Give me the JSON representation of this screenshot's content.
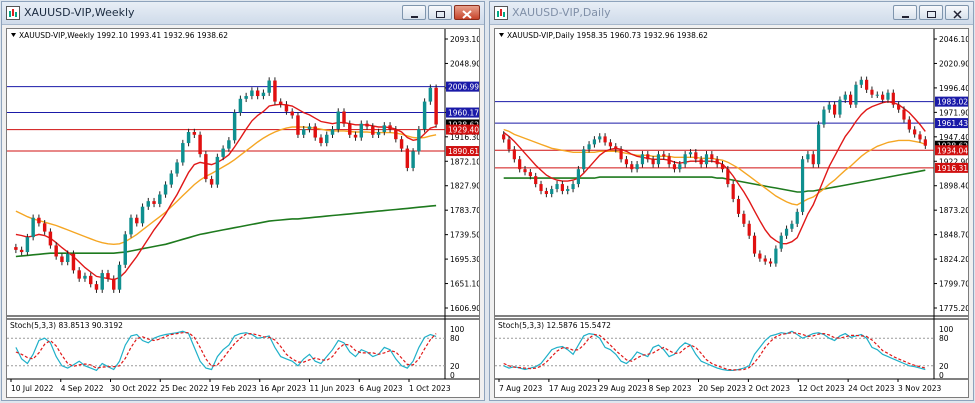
{
  "windows": [
    {
      "id": "weekly",
      "title": "XAUUSD-VIP,Weekly",
      "header": "XAUUSD-VIP,Weekly  1992.10 1993.41 1932.96 1938.62",
      "price_labels": [
        "2093.10",
        "2048.90",
        "2004.70",
        "1960.50",
        "1916.30",
        "1872.10",
        "1827.90",
        "1783.70",
        "1739.50",
        "1695.30",
        "1651.10",
        "1606.90"
      ],
      "price_range": [
        1606.9,
        2093.1
      ],
      "badges": [
        {
          "text": "2006.99",
          "value": 2006.99,
          "color": "#1a1aa8"
        },
        {
          "text": "1960.17",
          "value": 1960.17,
          "color": "#1a1aa8"
        },
        {
          "text": "1938.62",
          "value": 1938.62,
          "color": "#000000"
        },
        {
          "text": "1929.40",
          "value": 1929.4,
          "color": "#d01010"
        },
        {
          "text": "1890.61",
          "value": 1890.61,
          "color": "#d01010"
        }
      ],
      "hlines": [
        {
          "value": 2006.99,
          "color": "#1a1aa8"
        },
        {
          "value": 1960.17,
          "color": "#1a1aa8"
        },
        {
          "value": 1929.4,
          "color": "#d01010"
        },
        {
          "value": 1890.61,
          "color": "#d01010"
        }
      ],
      "date_labels": [
        "10 Jul 2022",
        "4 Sep 2022",
        "30 Oct 2022",
        "25 Dec 2022",
        "19 Feb 2023",
        "16 Apr 2023",
        "11 Jun 2023",
        "6 Aug 2023",
        "1 Oct 2023"
      ],
      "stoch_label": "Stoch(5,3,3) 83.8513 90.3192",
      "stoch_levels": [
        "100",
        "80",
        "20",
        "0"
      ],
      "close": [
        1712,
        1708,
        1735,
        1770,
        1760,
        1745,
        1720,
        1700,
        1690,
        1705,
        1675,
        1660,
        1665,
        1650,
        1640,
        1670,
        1660,
        1640,
        1685,
        1740,
        1770,
        1760,
        1790,
        1800,
        1795,
        1812,
        1830,
        1850,
        1870,
        1905,
        1925,
        1920,
        1885,
        1840,
        1830,
        1880,
        1895,
        1910,
        1960,
        1985,
        1990,
        2000,
        1990,
        1996,
        2018,
        1980,
        1975,
        1962,
        1955,
        1920,
        1930,
        1935,
        1915,
        1905,
        1920,
        1930,
        1962,
        1940,
        1920,
        1915,
        1940,
        1935,
        1920,
        1925,
        1937,
        1930,
        1912,
        1895,
        1860,
        1890,
        1930,
        1980,
        2005,
        1938.62
      ],
      "ma_fast": [
        1740,
        1738,
        1735,
        1737,
        1740,
        1738,
        1733,
        1725,
        1716,
        1708,
        1700,
        1690,
        1680,
        1672,
        1664,
        1662,
        1660,
        1658,
        1662,
        1672,
        1686,
        1700,
        1716,
        1732,
        1748,
        1762,
        1777,
        1795,
        1812,
        1832,
        1852,
        1866,
        1870,
        1868,
        1866,
        1870,
        1876,
        1884,
        1898,
        1914,
        1930,
        1945,
        1955,
        1962,
        1972,
        1974,
        1975,
        1974,
        1972,
        1966,
        1960,
        1956,
        1950,
        1944,
        1942,
        1940,
        1942,
        1942,
        1940,
        1938,
        1938,
        1938,
        1936,
        1934,
        1934,
        1933,
        1930,
        1925,
        1915,
        1910,
        1912,
        1922,
        1932,
        1935
      ],
      "ma_med": [
        1782,
        1777,
        1772,
        1768,
        1765,
        1762,
        1759,
        1756,
        1752,
        1748,
        1744,
        1740,
        1736,
        1732,
        1728,
        1725,
        1723,
        1722,
        1723,
        1727,
        1733,
        1740,
        1748,
        1756,
        1764,
        1772,
        1780,
        1790,
        1800,
        1810,
        1820,
        1830,
        1838,
        1845,
        1850,
        1856,
        1862,
        1868,
        1875,
        1883,
        1891,
        1899,
        1907,
        1914,
        1920,
        1925,
        1929,
        1932,
        1934,
        1934,
        1934,
        1933,
        1932,
        1930,
        1928,
        1927,
        1927,
        1927,
        1926,
        1925,
        1925,
        1925,
        1924,
        1924,
        1924,
        1924,
        1923,
        1921,
        1918,
        1915,
        1914,
        1915,
        1918,
        1920
      ],
      "ma_slow": [
        1700,
        1701,
        1702,
        1703,
        1704,
        1705,
        1706,
        1706,
        1706,
        1706,
        1706,
        1706,
        1706,
        1706,
        1706,
        1706,
        1706,
        1706,
        1707,
        1708,
        1710,
        1712,
        1714,
        1716,
        1718,
        1720,
        1722,
        1725,
        1728,
        1731,
        1734,
        1737,
        1740,
        1742,
        1744,
        1746,
        1748,
        1750,
        1752,
        1754,
        1756,
        1758,
        1760,
        1762,
        1764,
        1765,
        1766,
        1767,
        1768,
        1768,
        1769,
        1770,
        1771,
        1772,
        1773,
        1774,
        1775,
        1776,
        1777,
        1778,
        1779,
        1780,
        1781,
        1782,
        1783,
        1784,
        1785,
        1786,
        1787,
        1788,
        1789,
        1790,
        1791,
        1792
      ],
      "stoch_k": [
        60,
        35,
        25,
        45,
        75,
        80,
        70,
        40,
        20,
        15,
        22,
        30,
        20,
        15,
        10,
        25,
        18,
        12,
        30,
        65,
        85,
        88,
        75,
        70,
        80,
        85,
        88,
        90,
        92,
        95,
        90,
        60,
        30,
        15,
        12,
        40,
        55,
        65,
        85,
        90,
        92,
        88,
        80,
        82,
        85,
        60,
        40,
        35,
        30,
        20,
        35,
        45,
        30,
        25,
        40,
        55,
        75,
        70,
        50,
        40,
        55,
        50,
        40,
        45,
        60,
        55,
        35,
        20,
        15,
        30,
        60,
        82,
        88,
        84
      ],
      "stoch_d": [
        50,
        45,
        38,
        35,
        48,
        67,
        75,
        63,
        43,
        25,
        19,
        22,
        24,
        22,
        15,
        17,
        18,
        18,
        20,
        36,
        60,
        79,
        83,
        78,
        75,
        78,
        84,
        88,
        90,
        92,
        92,
        82,
        60,
        35,
        19,
        22,
        36,
        53,
        68,
        80,
        89,
        90,
        87,
        83,
        82,
        76,
        62,
        45,
        35,
        28,
        28,
        33,
        37,
        33,
        32,
        40,
        57,
        67,
        65,
        53,
        48,
        48,
        48,
        45,
        48,
        53,
        50,
        37,
        23,
        22,
        35,
        57,
        77,
        90
      ]
    },
    {
      "id": "daily",
      "title": "XAUUSD-VIP,Daily",
      "header": "XAUUSD-VIP,Daily  1958.35 1960.73 1932.96 1938.62",
      "price_labels": [
        "2046.10",
        "2020.90",
        "1996.40",
        "1971.90",
        "1947.40",
        "1922.90",
        "1898.40",
        "1873.20",
        "1848.70",
        "1824.20",
        "1799.70",
        "1775.20"
      ],
      "price_range": [
        1775.2,
        2046.1
      ],
      "badges": [
        {
          "text": "1983.02",
          "value": 1983.02,
          "color": "#1a1aa8"
        },
        {
          "text": "1961.43",
          "value": 1961.43,
          "color": "#1a1aa8"
        },
        {
          "text": "1938.62",
          "value": 1938.62,
          "color": "#000000"
        },
        {
          "text": "1934.04",
          "value": 1934.04,
          "color": "#d01010"
        },
        {
          "text": "1916.31",
          "value": 1916.31,
          "color": "#d01010"
        }
      ],
      "hlines": [
        {
          "value": 1983.02,
          "color": "#1a1aa8"
        },
        {
          "value": 1961.43,
          "color": "#1a1aa8"
        },
        {
          "value": 1934.04,
          "color": "#d01010"
        },
        {
          "value": 1916.31,
          "color": "#d01010"
        }
      ],
      "date_labels": [
        "7 Aug 2023",
        "17 Aug 2023",
        "29 Aug 2023",
        "8 Sep 2023",
        "20 Sep 2023",
        "2 Oct 2023",
        "12 Oct 2023",
        "24 Oct 2023",
        "3 Nov 2023"
      ],
      "stoch_label": "Stoch(5,3,3) 12.5876 15.5472",
      "stoch_levels": [
        "100",
        "80",
        "20",
        "0"
      ],
      "close": [
        1945,
        1935,
        1925,
        1915,
        1912,
        1908,
        1900,
        1893,
        1890,
        1895,
        1900,
        1893,
        1895,
        1900,
        1915,
        1935,
        1940,
        1945,
        1948,
        1942,
        1938,
        1935,
        1925,
        1920,
        1915,
        1920,
        1930,
        1925,
        1920,
        1930,
        1928,
        1920,
        1915,
        1920,
        1930,
        1932,
        1925,
        1920,
        1930,
        1925,
        1920,
        1915,
        1900,
        1885,
        1870,
        1860,
        1848,
        1830,
        1825,
        1822,
        1820,
        1835,
        1848,
        1855,
        1860,
        1872,
        1925,
        1930,
        1920,
        1960,
        1975,
        1980,
        1970,
        1985,
        1990,
        1980,
        2000,
        2005,
        1995,
        1990,
        1990,
        1985,
        1992,
        1980,
        1975,
        1965,
        1955,
        1950,
        1945,
        1938.62
      ],
      "ma_fast": [
        1952,
        1948,
        1943,
        1937,
        1931,
        1925,
        1919,
        1914,
        1909,
        1906,
        1904,
        1903,
        1903,
        1904,
        1906,
        1911,
        1917,
        1923,
        1929,
        1933,
        1935,
        1936,
        1935,
        1933,
        1930,
        1928,
        1927,
        1926,
        1925,
        1925,
        1925,
        1924,
        1922,
        1921,
        1922,
        1923,
        1923,
        1923,
        1923,
        1923,
        1922,
        1920,
        1915,
        1908,
        1900,
        1892,
        1883,
        1873,
        1863,
        1854,
        1847,
        1843,
        1840,
        1840,
        1842,
        1846,
        1858,
        1870,
        1879,
        1892,
        1905,
        1918,
        1928,
        1938,
        1948,
        1955,
        1963,
        1970,
        1975,
        1978,
        1980,
        1982,
        1983,
        1982,
        1980,
        1976,
        1972,
        1966,
        1960,
        1953
      ],
      "ma_med": [
        1955,
        1953,
        1950,
        1948,
        1946,
        1944,
        1942,
        1940,
        1938,
        1936,
        1935,
        1934,
        1933,
        1932,
        1932,
        1932,
        1932,
        1932,
        1933,
        1933,
        1933,
        1933,
        1932,
        1931,
        1930,
        1929,
        1929,
        1929,
        1928,
        1928,
        1928,
        1928,
        1927,
        1927,
        1927,
        1927,
        1927,
        1926,
        1926,
        1926,
        1925,
        1924,
        1922,
        1919,
        1916,
        1912,
        1908,
        1904,
        1900,
        1896,
        1892,
        1888,
        1885,
        1882,
        1880,
        1879,
        1882,
        1885,
        1887,
        1891,
        1895,
        1900,
        1904,
        1909,
        1914,
        1918,
        1923,
        1928,
        1932,
        1935,
        1938,
        1940,
        1942,
        1943,
        1944,
        1944,
        1944,
        1943,
        1942,
        1940
      ],
      "ma_slow": [
        1906,
        1906,
        1906,
        1906,
        1906,
        1906,
        1906,
        1906,
        1906,
        1906,
        1906,
        1906,
        1906,
        1906,
        1906,
        1906,
        1906,
        1906,
        1907,
        1907,
        1907,
        1907,
        1907,
        1907,
        1907,
        1907,
        1907,
        1907,
        1907,
        1907,
        1907,
        1907,
        1907,
        1907,
        1907,
        1907,
        1907,
        1907,
        1907,
        1907,
        1906,
        1906,
        1905,
        1904,
        1903,
        1902,
        1901,
        1900,
        1899,
        1898,
        1897,
        1896,
        1895,
        1894,
        1893,
        1892,
        1892,
        1893,
        1893,
        1894,
        1895,
        1896,
        1897,
        1898,
        1899,
        1900,
        1901,
        1902,
        1903,
        1904,
        1905,
        1906,
        1907,
        1908,
        1909,
        1910,
        1911,
        1912,
        1913,
        1914
      ],
      "stoch_k": [
        20,
        15,
        18,
        15,
        12,
        15,
        18,
        25,
        40,
        55,
        60,
        62,
        55,
        45,
        65,
        85,
        90,
        88,
        80,
        60,
        55,
        45,
        30,
        25,
        35,
        50,
        45,
        40,
        60,
        65,
        55,
        40,
        45,
        60,
        70,
        65,
        45,
        30,
        25,
        20,
        15,
        12,
        10,
        10,
        12,
        15,
        20,
        45,
        60,
        75,
        85,
        88,
        92,
        90,
        95,
        88,
        80,
        85,
        90,
        92,
        88,
        80,
        75,
        85,
        90,
        82,
        85,
        88,
        80,
        60,
        55,
        45,
        40,
        35,
        30,
        25,
        20,
        18,
        15,
        12
      ],
      "stoch_d": [
        25,
        20,
        17,
        16,
        15,
        14,
        15,
        19,
        28,
        40,
        52,
        59,
        59,
        54,
        55,
        65,
        80,
        88,
        86,
        76,
        65,
        53,
        43,
        33,
        30,
        37,
        43,
        45,
        48,
        55,
        60,
        53,
        47,
        48,
        58,
        65,
        60,
        47,
        33,
        25,
        20,
        16,
        12,
        11,
        11,
        12,
        16,
        27,
        42,
        60,
        73,
        83,
        88,
        90,
        92,
        91,
        88,
        84,
        85,
        89,
        90,
        87,
        81,
        80,
        83,
        86,
        86,
        85,
        84,
        76,
        65,
        53,
        47,
        40,
        35,
        30,
        25,
        21,
        18,
        15
      ]
    }
  ]
}
